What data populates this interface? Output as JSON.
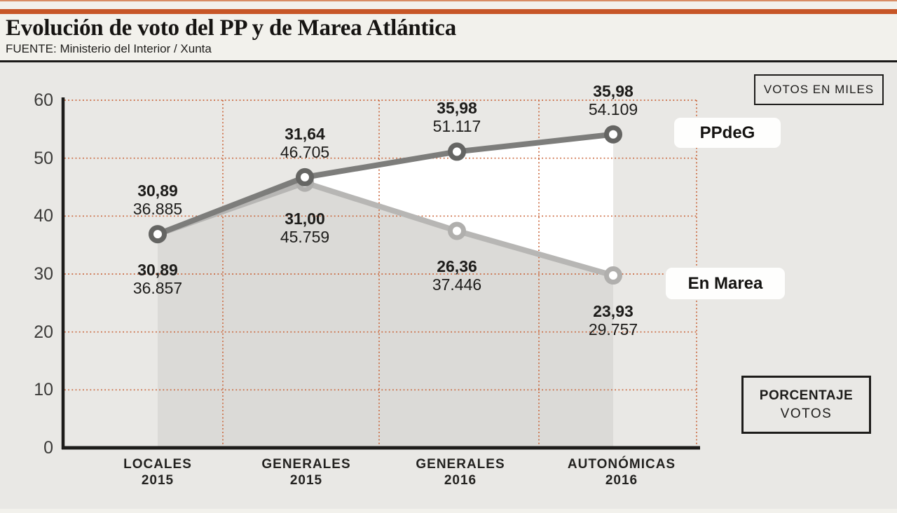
{
  "header": {
    "title": "Evolución de voto del PP y de Marea Atlántica",
    "source": "FUENTE: Ministerio del Interior / Xunta"
  },
  "colors": {
    "accent_orange": "#c75627",
    "grid_orange": "#c96236",
    "panel_bg": "#e9e8e5",
    "fill_under_line": "#dbdad7",
    "fill_between_lines": "#ffffff",
    "axis_black": "#1d1c1a",
    "pp_line": "#7d7d7b",
    "pp_ring": "#656563",
    "em_line": "#b7b6b4",
    "em_ring": "#b0afad"
  },
  "chart_data": {
    "type": "line",
    "title": "Evolución de voto del PP y de Marea Atlántica",
    "source": "FUENTE: Ministerio del Interior / Xunta",
    "unit_note": "VOTOS EN MILES",
    "pct_note_line1": "PORCENTAJE",
    "pct_note_line2": "VOTOS",
    "grid": "dotted-orange",
    "legend_position": "right-of-line-ends",
    "y_axis": {
      "min": 0,
      "max": 60,
      "ticks": [
        0,
        10,
        20,
        30,
        40,
        50,
        60
      ]
    },
    "categories": [
      {
        "line1": "LOCALES",
        "line2": "2015"
      },
      {
        "line1": "GENERALES",
        "line2": "2015"
      },
      {
        "line1": "GENERALES",
        "line2": "2016"
      },
      {
        "line1": "AUTONÓMICAS",
        "line2": "2016"
      }
    ],
    "series": [
      {
        "name": "PPdeG",
        "line_color": "#7d7d7b",
        "ring_color": "#656563",
        "points": [
          {
            "value_thousands": 36.885,
            "pct": 30.89,
            "pct_label": "30,89",
            "votes_label": "36.885"
          },
          {
            "value_thousands": 46.705,
            "pct": 31.64,
            "pct_label": "31,64",
            "votes_label": "46.705"
          },
          {
            "value_thousands": 51.117,
            "pct": 35.98,
            "pct_label": "35,98",
            "votes_label": "51.117"
          },
          {
            "value_thousands": 54.109,
            "pct": 35.98,
            "pct_label": "35,98",
            "votes_label": "54.109"
          }
        ]
      },
      {
        "name": "En Marea",
        "line_color": "#b7b6b4",
        "ring_color": "#b0afad",
        "points": [
          {
            "value_thousands": 36.857,
            "pct": 30.89,
            "pct_label": "30,89",
            "votes_label": "36.857"
          },
          {
            "value_thousands": 45.759,
            "pct": 31.0,
            "pct_label": "31,00",
            "votes_label": "45.759"
          },
          {
            "value_thousands": 37.446,
            "pct": 26.36,
            "pct_label": "26,36",
            "votes_label": "37.446"
          },
          {
            "value_thousands": 29.757,
            "pct": 23.93,
            "pct_label": "23,93",
            "votes_label": "29.757"
          }
        ]
      }
    ]
  }
}
